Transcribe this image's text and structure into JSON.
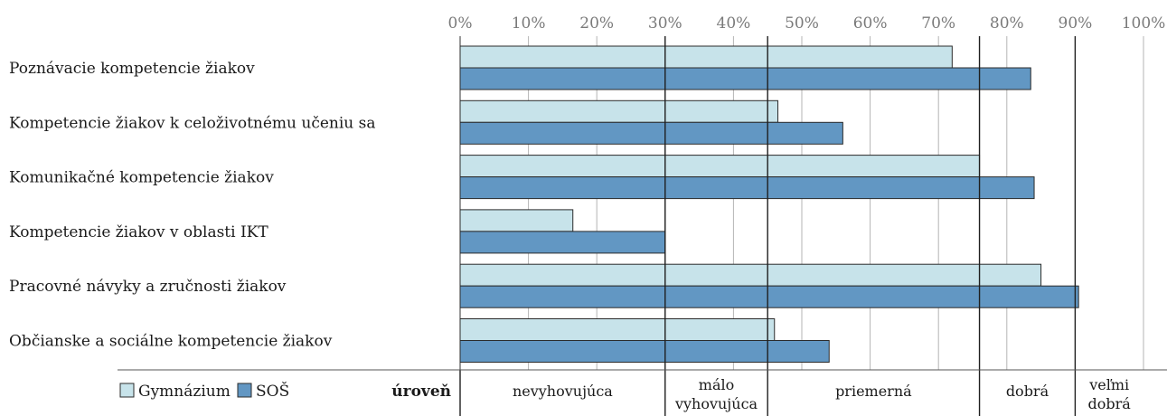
{
  "chart_data": {
    "type": "bar",
    "orientation": "horizontal",
    "categories": [
      "Poznávacie kompetencie žiakov",
      "Kompetencie žiakov k celoživotnému učeniu sa",
      "Komunikačné kompetencie žiakov",
      "Kompetencie žiakov v oblasti IKT",
      "Pracovné návyky a zručnosti žiakov",
      "Občianske a sociálne kompetencie žiakov"
    ],
    "series": [
      {
        "name": "Gymnázium",
        "color": "#c7e3ea",
        "values": [
          72,
          46.5,
          76,
          16.5,
          85,
          46
        ]
      },
      {
        "name": "SOŠ",
        "color": "#6297c3",
        "values": [
          83.5,
          56,
          84,
          30,
          90.5,
          54
        ]
      }
    ],
    "x_ticks": [
      "0%",
      "10%",
      "20%",
      "30%",
      "40%",
      "50%",
      "60%",
      "70%",
      "80%",
      "90%",
      "100%"
    ],
    "xlim": [
      0,
      100
    ],
    "grid": true,
    "legend_position": "bottom-left",
    "level_title": "úroveň",
    "level_boundaries": [
      30,
      45,
      76,
      90
    ],
    "levels": [
      {
        "from": 0,
        "to": 30,
        "lines": [
          "nevyhovujúca"
        ]
      },
      {
        "from": 30,
        "to": 45,
        "lines": [
          "málo",
          "vyhovujúca"
        ]
      },
      {
        "from": 45,
        "to": 76,
        "lines": [
          "priemerná"
        ]
      },
      {
        "from": 76,
        "to": 90,
        "lines": [
          "dobrá"
        ]
      },
      {
        "from": 90,
        "to": 100,
        "lines": [
          "veľmi",
          "dobrá"
        ]
      }
    ]
  }
}
